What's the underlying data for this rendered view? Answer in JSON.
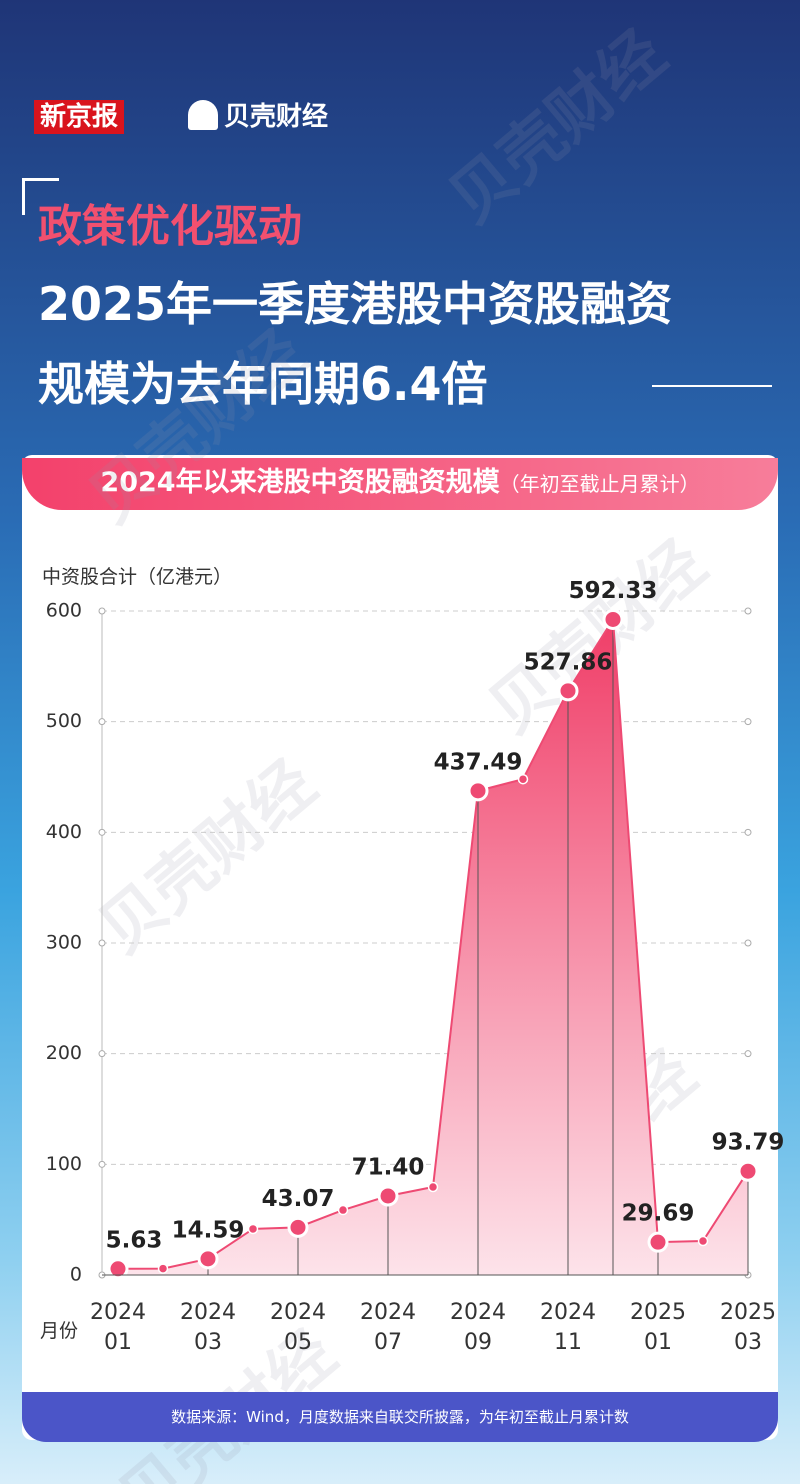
{
  "header": {
    "brand": "新京报",
    "brand2": "贝壳财经",
    "kicker": "政策优化驱动",
    "title_line1": "2025年一季度港股中资股融资",
    "title_line2": "规模为去年同期6.4倍",
    "watermark": "贝壳财经"
  },
  "chart_data": {
    "type": "area",
    "title": "2024年以来港股中资股融资规模",
    "subtitle": "（年初至截止月累计）",
    "y_label": "中资股合计（亿港元）",
    "x_label": "月份",
    "categories": [
      "2024\n01",
      null,
      "2024\n03",
      null,
      "2024\n05",
      null,
      "2024\n07",
      null,
      "2024\n09",
      null,
      "2024\n11",
      null,
      "2025\n01",
      null,
      "2025\n03"
    ],
    "values": [
      5.63,
      5.8,
      14.59,
      41.6,
      43.07,
      58.7,
      71.4,
      79.5,
      437.49,
      448,
      527.86,
      592.33,
      29.69,
      30.7,
      93.79
    ],
    "value_labels": [
      "5.63",
      null,
      "14.59",
      null,
      "43.07",
      null,
      "71.40",
      null,
      "437.49",
      null,
      "527.86",
      "592.33",
      "29.69",
      null,
      "93.79"
    ],
    "color": "#ee4a73",
    "ylim": [
      0,
      600
    ],
    "yticks": [
      0,
      100,
      200,
      300,
      400,
      500,
      600
    ],
    "grid": true,
    "source": "数据来源：Wind，月度数据来自联交所披露，为年初至截止月累计数"
  }
}
